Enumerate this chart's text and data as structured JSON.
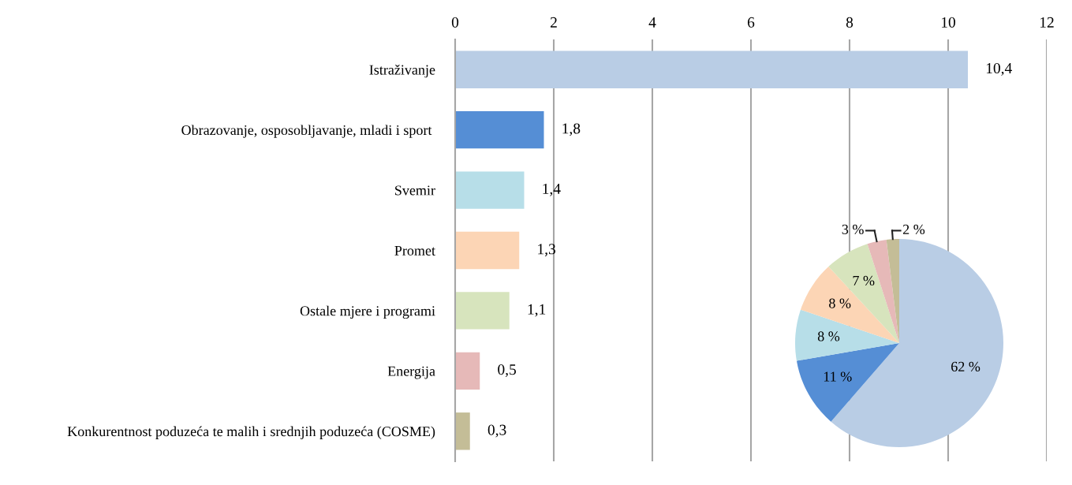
{
  "chart_data": [
    {
      "type": "bar",
      "orientation": "horizontal",
      "categories": [
        "Istraživanje",
        "Obrazovanje, osposobljavanje, mladi i sport ",
        "Svemir",
        "Promet",
        "Ostale mjere i programi",
        "Energija",
        "Konkurentnost poduzeća te malih i srednjih poduzeća (COSME)"
      ],
      "values": [
        10.4,
        1.8,
        1.4,
        1.3,
        1.1,
        0.5,
        0.3
      ],
      "value_labels": [
        "10,4",
        "1,8",
        "1,4",
        "1,3",
        "1,1",
        "0,5",
        "0,3"
      ],
      "colors": [
        "#b9cde5",
        "#558ed5",
        "#b7dee8",
        "#fcd5b5",
        "#d7e4bd",
        "#e6b9b8",
        "#c4bd97"
      ],
      "xlim": [
        0,
        12
      ],
      "xticks": [
        0,
        2,
        4,
        6,
        8,
        10,
        12
      ],
      "grid": "x"
    },
    {
      "type": "pie",
      "categories": [
        null,
        null,
        null,
        null,
        null,
        null,
        null
      ],
      "values": [
        62,
        11,
        8,
        8,
        7,
        3,
        2
      ],
      "value_labels": [
        "62 %",
        "11 %",
        "8 %",
        "8 %",
        "7 %",
        "3 %",
        "2 %"
      ],
      "colors": [
        "#b9cde5",
        "#558ed5",
        "#b7dee8",
        "#fcd5b5",
        "#d7e4bd",
        "#e6b9b8",
        "#c4bd97"
      ]
    }
  ]
}
